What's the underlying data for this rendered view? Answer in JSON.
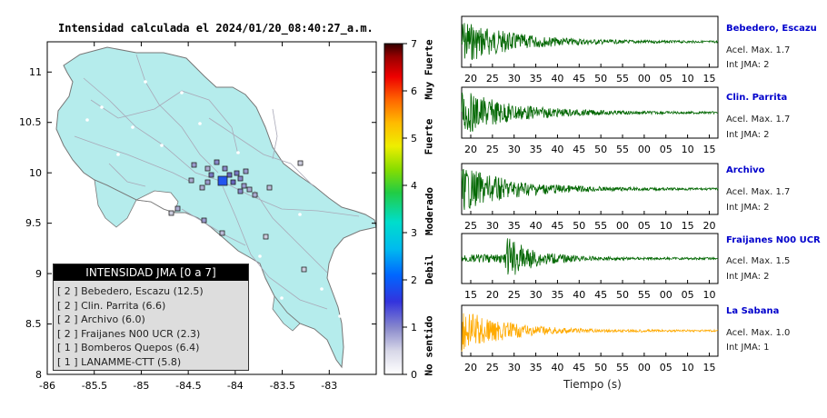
{
  "map": {
    "title": "Intensidad calculada el 2024/01/20_08:40:27_a.m.",
    "x_ticks": [
      "-86",
      "-85.5",
      "-85",
      "-84.5",
      "-84",
      "-83.5",
      "-83"
    ],
    "y_ticks": [
      "11",
      "10.5",
      "10",
      "9.5",
      "9",
      "8.5",
      "8"
    ],
    "land_color": "#b5ecec",
    "sea_color": "#ffffff",
    "epicenter_color": "#2255ee"
  },
  "colorbar": {
    "ticks": [
      "7",
      "6",
      "5",
      "4",
      "3",
      "2",
      "1",
      "0"
    ],
    "labels": [
      "Muy Fuerte",
      "Fuerte",
      "Moderado",
      "Debil",
      "No sentido"
    ]
  },
  "legend": {
    "title": "INTENSIDAD JMA [0 a 7]",
    "items": [
      "[ 2 ] Bebedero, Escazu (12.5)",
      "[ 2 ] Clin. Parrita (6.6)",
      "[ 2 ] Archivo (6.0)",
      "[ 2 ] Fraijanes N00 UCR (2.3)",
      "[ 1 ] Bomberos Quepos (6.4)",
      "[ 1 ] LANAMME-CTT (5.8)"
    ]
  },
  "traces": [
    {
      "name": "Bebedero, Escazu",
      "acc": "Acel. Max. 1.7",
      "jma": "Int JMA: 2",
      "ticks": [
        "20",
        "25",
        "30",
        "35",
        "40",
        "45",
        "50",
        "55",
        "00",
        "05",
        "10",
        "15"
      ],
      "color": "#006600"
    },
    {
      "name": "Clin. Parrita",
      "acc": "Acel. Max. 1.7",
      "jma": "Int JMA: 2",
      "ticks": [
        "20",
        "25",
        "30",
        "35",
        "40",
        "45",
        "50",
        "55",
        "00",
        "05",
        "10",
        "15"
      ],
      "color": "#006600"
    },
    {
      "name": "Archivo",
      "acc": "Acel. Max. 1.7",
      "jma": "Int JMA: 2",
      "ticks": [
        "25",
        "30",
        "35",
        "40",
        "45",
        "50",
        "55",
        "00",
        "05",
        "10",
        "15",
        "20"
      ],
      "color": "#006600"
    },
    {
      "name": "Fraijanes N00 UCR",
      "acc": "Acel. Max. 1.5",
      "jma": "Int JMA: 2",
      "ticks": [
        "15",
        "20",
        "25",
        "30",
        "35",
        "40",
        "45",
        "50",
        "55",
        "00",
        "05",
        "10"
      ],
      "color": "#006600"
    },
    {
      "name": "La Sabana",
      "acc": "Acel. Max. 1.0",
      "jma": "Int JMA: 1",
      "ticks": [
        "20",
        "25",
        "30",
        "35",
        "40",
        "45",
        "50",
        "55",
        "00",
        "05",
        "10",
        "15"
      ],
      "color": "#ffaa00"
    }
  ],
  "x_axis_label": "Tiempo (s)",
  "chart_data": {
    "type": "scatter",
    "title": "Intensidad calculada el 2024/01/20_08:40:27_a.m.",
    "xlim": [
      -86,
      -82.5
    ],
    "ylim": [
      8,
      11.3
    ],
    "stations": [
      {
        "name": "Bebedero, Escazu",
        "jma": 2,
        "value": 12.5
      },
      {
        "name": "Clin. Parrita",
        "jma": 2,
        "value": 6.6
      },
      {
        "name": "Archivo",
        "jma": 2,
        "value": 6.0
      },
      {
        "name": "Fraijanes N00 UCR",
        "jma": 2,
        "value": 2.3
      },
      {
        "name": "Bomberos Quepos",
        "jma": 1,
        "value": 6.4
      },
      {
        "name": "LANAMME-CTT",
        "jma": 1,
        "value": 5.8
      }
    ],
    "colorbar_range": [
      0,
      7
    ]
  }
}
